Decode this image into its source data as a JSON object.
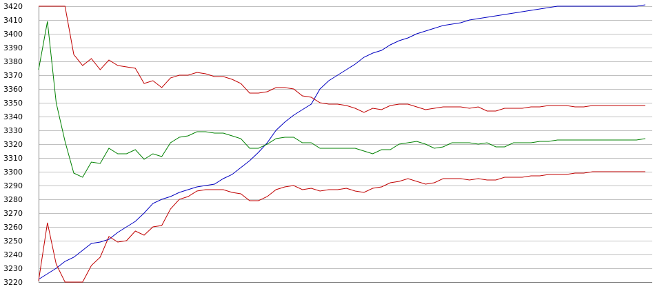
{
  "chart_data": {
    "type": "line",
    "title": "",
    "xlabel": "",
    "ylabel": "",
    "ylim": [
      3220,
      3420
    ],
    "y_ticks": [
      3420,
      3410,
      3400,
      3390,
      3380,
      3370,
      3360,
      3350,
      3340,
      3330,
      3320,
      3310,
      3300,
      3290,
      3280,
      3270,
      3260,
      3250,
      3240,
      3230,
      3220
    ],
    "grid": "horizontal",
    "x": [
      1,
      2,
      3,
      4,
      5,
      6,
      7,
      8,
      9,
      10,
      11,
      12,
      13,
      14,
      15,
      16,
      17,
      18,
      19,
      20,
      21,
      22,
      23,
      24,
      25,
      26,
      27,
      28,
      29,
      30,
      31,
      32,
      33,
      34,
      35,
      36,
      37,
      38,
      39,
      40,
      41,
      42,
      43,
      44,
      45,
      46,
      47,
      48,
      49,
      50,
      51,
      52,
      53,
      54,
      55,
      56,
      57,
      58,
      59,
      60,
      61,
      62,
      63,
      64,
      65,
      66,
      67,
      68,
      69,
      70
    ],
    "series": [
      {
        "color": "#0000c0",
        "values": [
          3222,
          3226,
          3230,
          3235,
          3238,
          3243,
          3248,
          3249,
          3251,
          3256,
          3260,
          3264,
          3270,
          3277,
          3280,
          3282,
          3285,
          3287,
          3289,
          3290,
          3291,
          3295,
          3298,
          3303,
          3308,
          3314,
          3321,
          3330,
          3336,
          3341,
          3345,
          3349,
          3360,
          3366,
          3370,
          3374,
          3378,
          3383,
          3386,
          3388,
          3392,
          3395,
          3397,
          3400,
          3402,
          3404,
          3406,
          3407,
          3408,
          3410,
          3411,
          3412,
          3413,
          3414,
          3415,
          3416,
          3417,
          3418,
          3419,
          3420,
          3420,
          3420,
          3420,
          3420,
          3420,
          3420,
          3420,
          3420,
          3420,
          3421
        ]
      },
      {
        "color": "#c00000",
        "values": [
          3420,
          3420,
          3420,
          3420,
          3385,
          3377,
          3382,
          3374,
          3381,
          3377,
          3376,
          3375,
          3364,
          3366,
          3361,
          3368,
          3370,
          3370,
          3372,
          3371,
          3369,
          3369,
          3367,
          3364,
          3357,
          3357,
          3358,
          3361,
          3361,
          3360,
          3355,
          3354,
          3350,
          3349,
          3349,
          3348,
          3346,
          3343,
          3346,
          3345,
          3348,
          3349,
          3349,
          3347,
          3345,
          3346,
          3347,
          3347,
          3347,
          3346,
          3347,
          3344,
          3344,
          3346,
          3346,
          3346,
          3347,
          3347,
          3348,
          3348,
          3348,
          3347,
          3347,
          3348,
          3348,
          3348,
          3348,
          3348,
          3348,
          3348
        ]
      },
      {
        "color": "#008000",
        "values": [
          3374,
          3409,
          3350,
          3322,
          3299,
          3296,
          3307,
          3306,
          3317,
          3313,
          3313,
          3316,
          3309,
          3313,
          3311,
          3321,
          3325,
          3326,
          3329,
          3329,
          3328,
          3328,
          3326,
          3324,
          3317,
          3317,
          3320,
          3324,
          3325,
          3325,
          3321,
          3321,
          3317,
          3317,
          3317,
          3317,
          3317,
          3315,
          3313,
          3316,
          3316,
          3320,
          3321,
          3322,
          3320,
          3317,
          3318,
          3321,
          3321,
          3321,
          3320,
          3321,
          3318,
          3318,
          3321,
          3321,
          3321,
          3322,
          3322,
          3323,
          3323,
          3323,
          3323,
          3323,
          3323,
          3323,
          3323,
          3323,
          3323,
          3324
        ]
      },
      {
        "color": "#c00000",
        "values": [
          3221,
          3263,
          3233,
          3220,
          3220,
          3220,
          3232,
          3238,
          3253,
          3249,
          3250,
          3257,
          3254,
          3260,
          3261,
          3273,
          3280,
          3282,
          3286,
          3287,
          3287,
          3287,
          3285,
          3284,
          3279,
          3279,
          3282,
          3287,
          3289,
          3290,
          3287,
          3288,
          3286,
          3287,
          3287,
          3288,
          3286,
          3285,
          3288,
          3289,
          3292,
          3293,
          3295,
          3293,
          3291,
          3292,
          3295,
          3295,
          3295,
          3294,
          3295,
          3294,
          3294,
          3296,
          3296,
          3296,
          3297,
          3297,
          3298,
          3298,
          3298,
          3299,
          3299,
          3300,
          3300,
          3300,
          3300,
          3300,
          3300,
          3300
        ]
      }
    ]
  }
}
